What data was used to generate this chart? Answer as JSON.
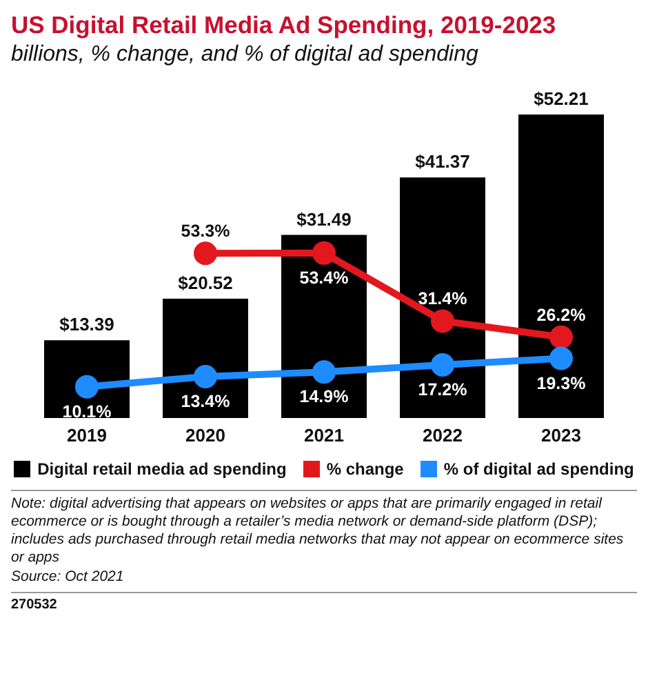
{
  "chart_data": {
    "type": "bar",
    "title": "US Digital Retail Media Ad Spending, 2019-2023",
    "subtitle": "billions, % change, and % of digital ad spending",
    "categories": [
      "2019",
      "2020",
      "2021",
      "2022",
      "2023"
    ],
    "series": [
      {
        "name": "Digital retail media ad spending",
        "color": "#000000",
        "values": [
          13.39,
          20.52,
          31.49,
          41.37,
          52.21
        ],
        "value_labels": [
          "$13.39",
          "$20.52",
          "$31.49",
          "$41.37",
          "$52.21"
        ]
      },
      {
        "name": "% change",
        "type": "line",
        "axis": "y2",
        "color": "#e3181e",
        "values": [
          null,
          53.3,
          53.4,
          31.4,
          26.2
        ],
        "value_labels": [
          null,
          "53.3%",
          "53.4%",
          "31.4%",
          "26.2%"
        ]
      },
      {
        "name": "% of digital ad spending",
        "type": "line",
        "axis": "y2",
        "color": "#1e8cff",
        "values": [
          10.1,
          13.4,
          14.9,
          17.2,
          19.3
        ],
        "value_labels": [
          "10.1%",
          "13.4%",
          "14.9%",
          "17.2%",
          "19.3%"
        ]
      }
    ],
    "marker": "circle",
    "line_style": "solid",
    "legend": "bottom",
    "grid": false,
    "annotations": [
      "Note: digital advertising that appears on websites or apps that are primarily engaged in retail ecommerce or is bought through a retailer’s media network or demand-side platform (DSP); includes ads purchased through retail media networks that may not appear on ecommerce sites or apps",
      "Source: Oct 2021",
      "270532"
    ]
  }
}
